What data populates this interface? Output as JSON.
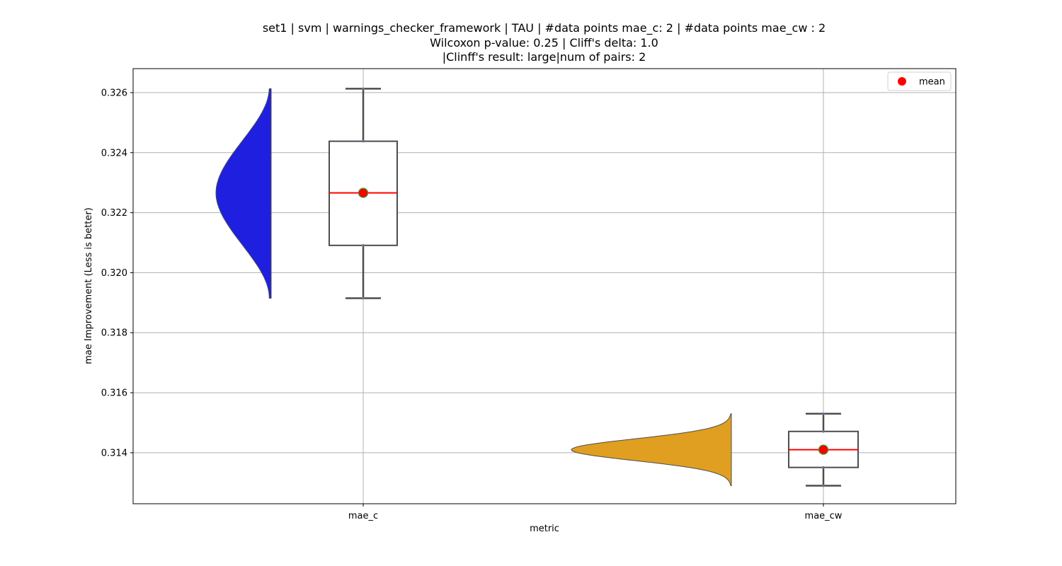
{
  "chart_data": {
    "type": "violin-box",
    "title_lines": [
      "set1 | svm | warnings_checker_framework | TAU | #data points mae_c: 2 | #data points mae_cw : 2",
      "Wilcoxon p-value: 0.25 | Cliff's delta: 1.0",
      "|Clinff's result: large|num of pairs: 2"
    ],
    "xlabel": "metric",
    "ylabel": "mae Improvement (Less is better)",
    "categories": [
      "mae_c",
      "mae_cw"
    ],
    "ylim": [
      0.3123,
      0.3268
    ],
    "yticks": [
      "0.314",
      "0.316",
      "0.318",
      "0.320",
      "0.322",
      "0.324",
      "0.326"
    ],
    "ytick_values": [
      0.314,
      0.316,
      0.318,
      0.32,
      0.322,
      0.324,
      0.326
    ],
    "grid": true,
    "legend": {
      "position": "top-right",
      "entries": [
        "mean"
      ]
    },
    "series": [
      {
        "category": "mae_c",
        "violin_color": "#1f1fe0",
        "min": 0.31915,
        "q1": 0.32091,
        "median": 0.32266,
        "q3": 0.32438,
        "max": 0.32613,
        "mean": 0.32266
      },
      {
        "category": "mae_cw",
        "violin_color": "#e09f20",
        "min": 0.3129,
        "q1": 0.31351,
        "median": 0.3141,
        "q3": 0.31471,
        "max": 0.3153,
        "mean": 0.3141
      }
    ],
    "colors": {
      "median": "#ff0000",
      "mean_marker": "#ff0000",
      "mean_edge": "#2ca02c",
      "box_edge": "#4d4d4d",
      "grid": "#b0b0b0"
    }
  }
}
